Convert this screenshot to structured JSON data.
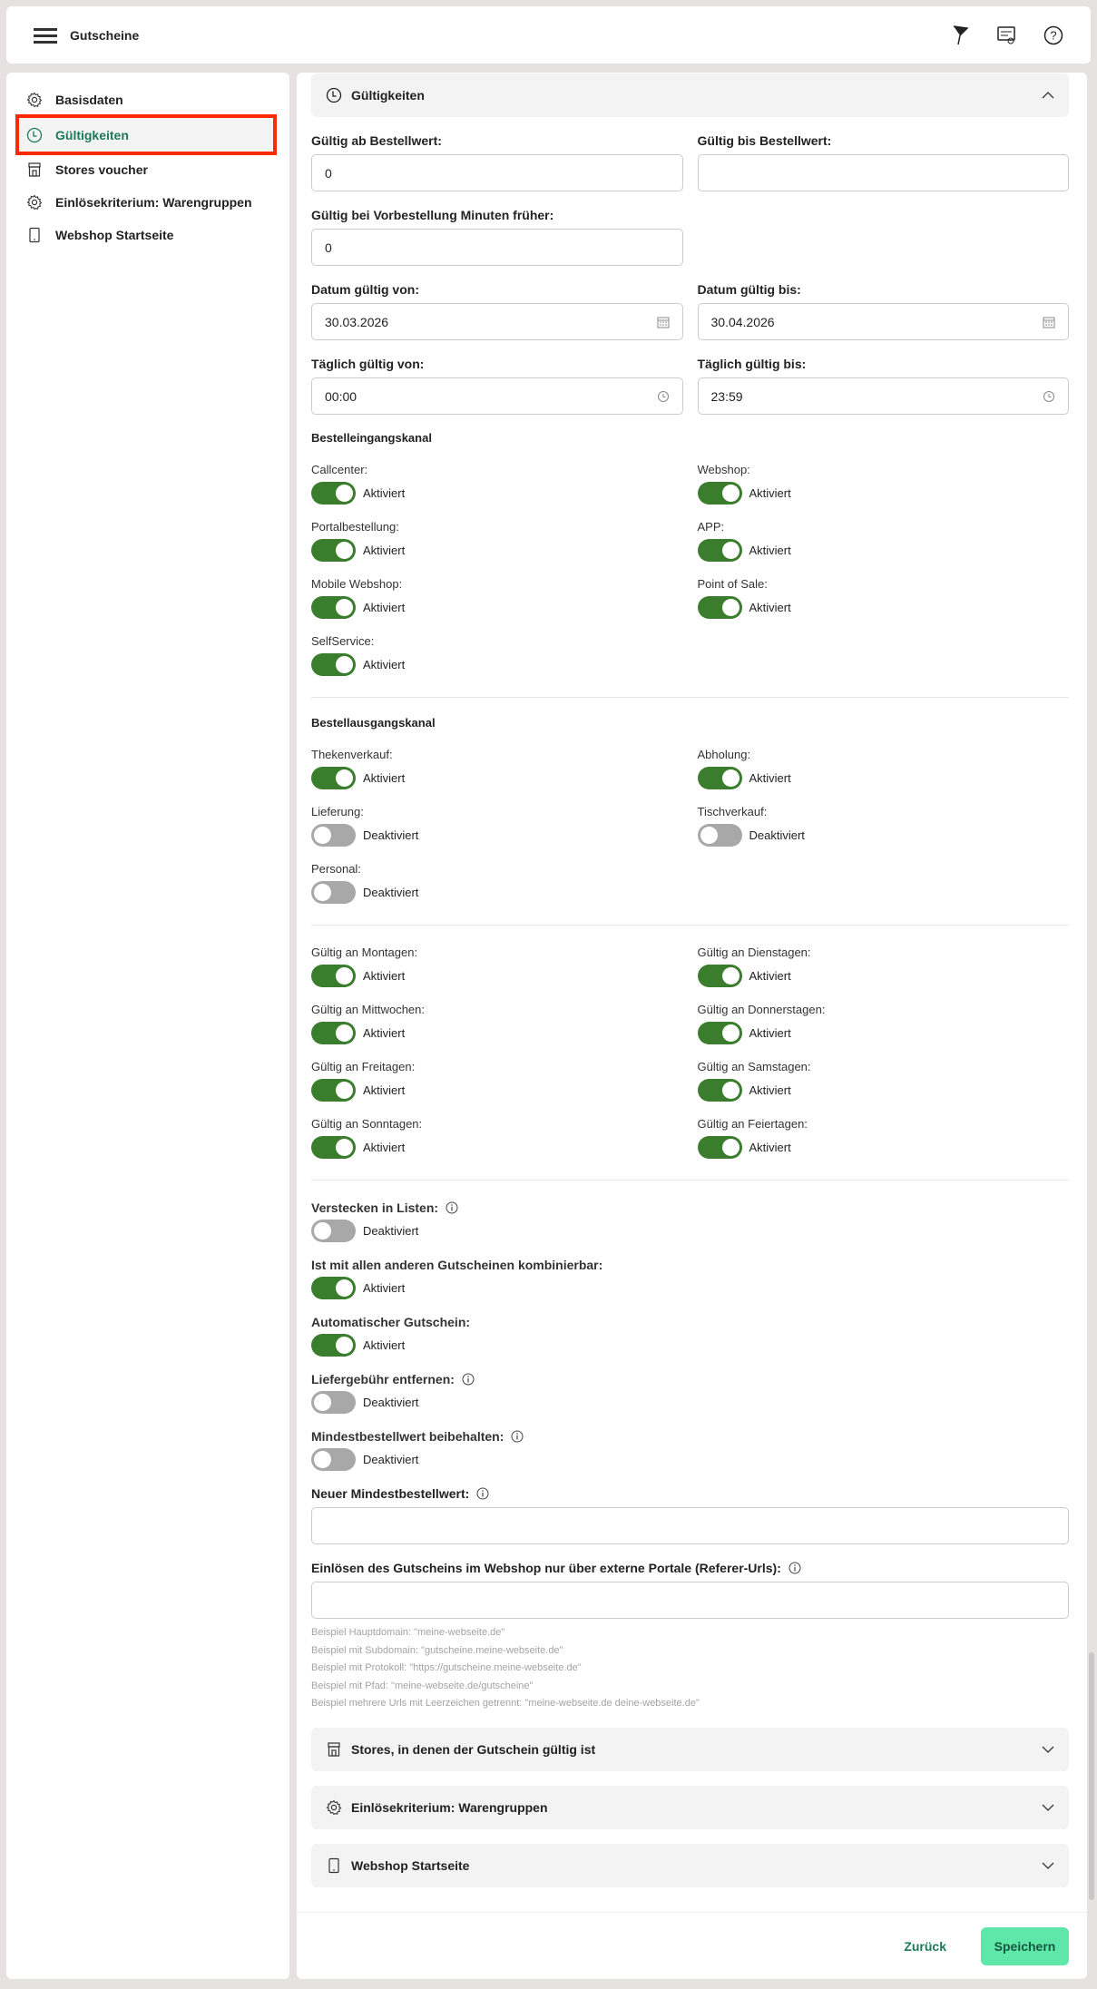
{
  "header": {
    "title": "Gutscheine"
  },
  "sidebar": {
    "items": [
      {
        "label": "Basisdaten",
        "icon": "gear-icon"
      },
      {
        "label": "Gültigkeiten",
        "icon": "clock-icon",
        "active": true
      },
      {
        "label": "Stores voucher",
        "icon": "store-icon"
      },
      {
        "label": "Einlösekriterium: Warengruppen",
        "icon": "gear-icon"
      },
      {
        "label": "Webshop Startseite",
        "icon": "phone-icon"
      }
    ]
  },
  "section": {
    "title": "Gültigkeiten"
  },
  "fields": {
    "min_order_from": {
      "label": "Gültig ab Bestellwert:",
      "value": "0"
    },
    "min_order_to": {
      "label": "Gültig bis Bestellwert:",
      "value": ""
    },
    "preorder": {
      "label": "Gültig bei Vorbestellung Minuten früher:",
      "value": "0"
    },
    "date_from": {
      "label": "Datum gültig von:",
      "value": "30.03.2026"
    },
    "date_to": {
      "label": "Datum gültig bis:",
      "value": "30.04.2026"
    },
    "daily_from": {
      "label": "Täglich gültig von:",
      "value": "00:00"
    },
    "daily_to": {
      "label": "Täglich gültig bis:",
      "value": "23:59"
    }
  },
  "status": {
    "on": "Aktiviert",
    "off": "Deaktiviert"
  },
  "incoming": {
    "title": "Bestelleingangskanal",
    "items": [
      {
        "label": "Callcenter:",
        "on": true
      },
      {
        "label": "Webshop:",
        "on": true
      },
      {
        "label": "Portalbestellung:",
        "on": true
      },
      {
        "label": "APP:",
        "on": true
      },
      {
        "label": "Mobile Webshop:",
        "on": true
      },
      {
        "label": "Point of Sale:",
        "on": true
      },
      {
        "label": "SelfService:",
        "on": true
      }
    ]
  },
  "outgoing": {
    "title": "Bestellausgangskanal",
    "items": [
      {
        "label": "Thekenverkauf:",
        "on": true
      },
      {
        "label": "Abholung:",
        "on": true
      },
      {
        "label": "Lieferung:",
        "on": false
      },
      {
        "label": "Tischverkauf:",
        "on": false
      },
      {
        "label": "Personal:",
        "on": false
      }
    ]
  },
  "days": {
    "items": [
      {
        "label": "Gültig an Montagen:",
        "on": true
      },
      {
        "label": "Gültig an Dienstagen:",
        "on": true
      },
      {
        "label": "Gültig an Mittwochen:",
        "on": true
      },
      {
        "label": "Gültig an Donnerstagen:",
        "on": true
      },
      {
        "label": "Gültig an Freitagen:",
        "on": true
      },
      {
        "label": "Gültig an Samstagen:",
        "on": true
      },
      {
        "label": "Gültig an Sonntagen:",
        "on": true
      },
      {
        "label": "Gültig an Feiertagen:",
        "on": true
      }
    ]
  },
  "options": {
    "items": [
      {
        "label": "Verstecken in Listen:",
        "on": false,
        "info": true
      },
      {
        "label": "Ist mit allen anderen Gutscheinen kombinierbar:",
        "on": true,
        "info": false
      },
      {
        "label": "Automatischer Gutschein:",
        "on": true,
        "info": false
      },
      {
        "label": "Liefergebühr entfernen:",
        "on": false,
        "info": true
      },
      {
        "label": "Mindestbestellwert beibehalten:",
        "on": false,
        "info": true
      }
    ]
  },
  "new_min": {
    "label": "Neuer Mindestbestellwert:",
    "value": ""
  },
  "referer": {
    "label": "Einlösen des Gutscheins im Webshop nur über externe Portale (Referer-Urls):",
    "value": "",
    "hints": [
      "Beispiel Hauptdomain: \"meine-webseite.de\"",
      "Beispiel mit Subdomain: \"gutscheine.meine-webseite.de\"",
      "Beispiel mit Protokoll: \"https://gutscheine.meine-webseite.de\"",
      "Beispiel mit Pfad: \"meine-webseite.de/gutscheine\"",
      "Beispiel mehrere Urls mit Leerzeichen getrennt: \"meine-webseite.de deine-webseite.de\""
    ]
  },
  "accordions": [
    {
      "title": "Stores, in denen der Gutschein gültig ist",
      "icon": "store-icon"
    },
    {
      "title": "Einlösekriterium: Warengruppen",
      "icon": "gear-icon"
    },
    {
      "title": "Webshop Startseite",
      "icon": "phone-icon"
    }
  ],
  "footer": {
    "back": "Zurück",
    "save": "Speichern"
  },
  "colors": {
    "accent": "#1b7a5a",
    "toggle_on": "#3a7d2c",
    "save": "#5fe6a9",
    "highlight": "#ff2a00"
  }
}
